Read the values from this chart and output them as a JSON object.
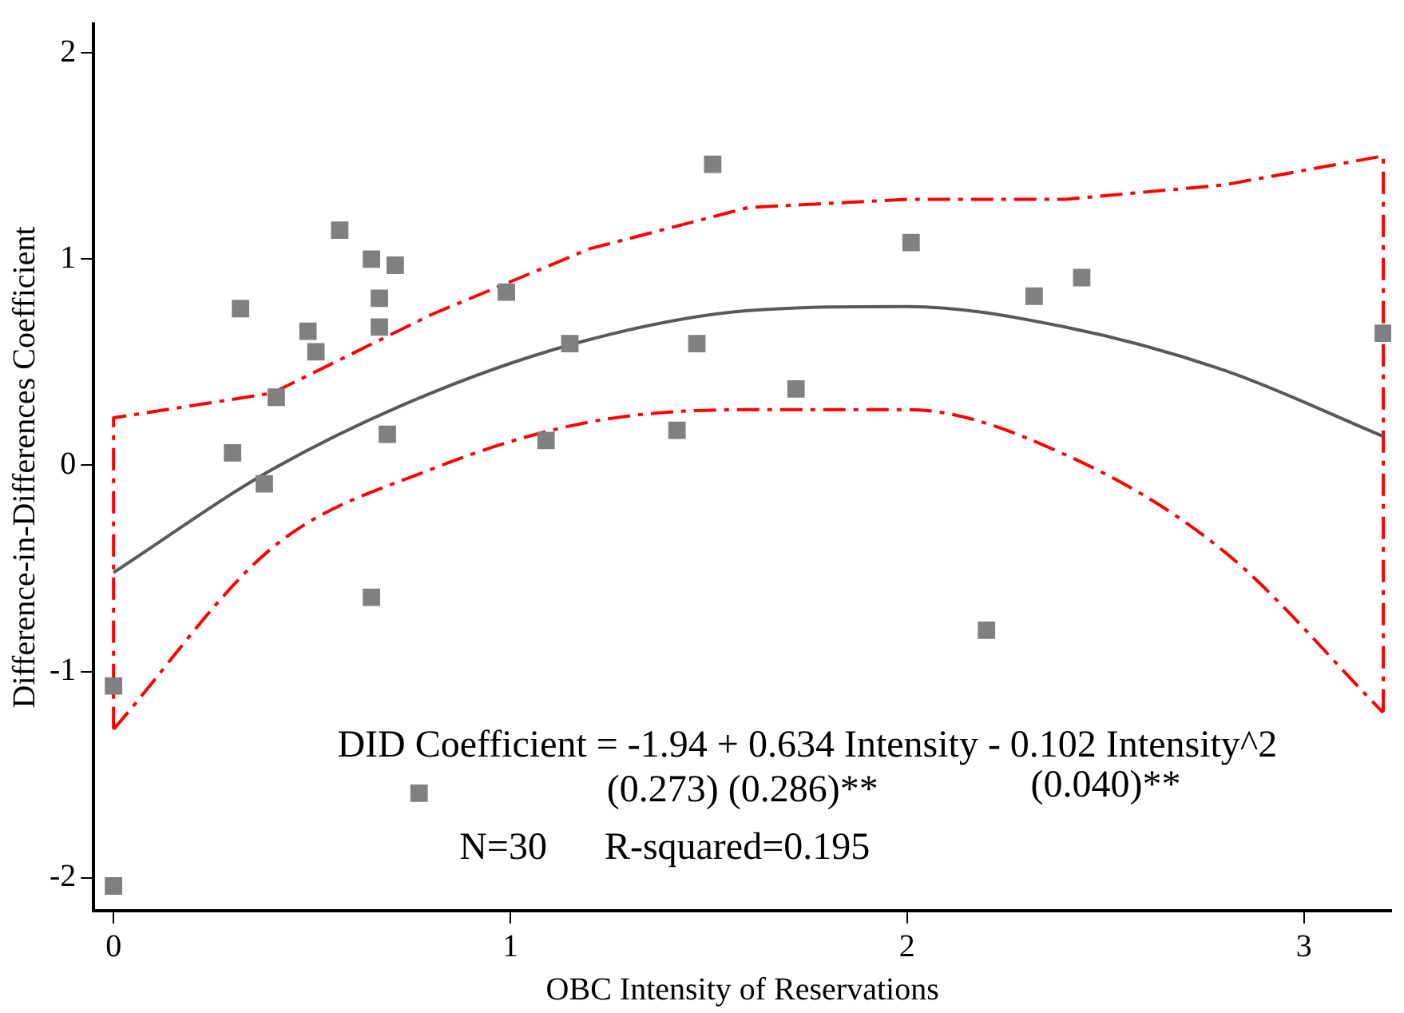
{
  "chart_data": {
    "type": "scatter",
    "xlabel": "OBC Intensity of Reservations",
    "ylabel": "Difference-in-Differences Coefficient",
    "xlim": [
      -0.05,
      3.22
    ],
    "xticks": [
      0,
      1,
      2,
      3
    ],
    "ylim": [
      -2.16,
      2.14
    ],
    "yticks": [
      -2,
      -1,
      0,
      1,
      2
    ],
    "grid": false,
    "legend": false,
    "marker": "square",
    "series": [
      {
        "color": "#808080",
        "x": [
          0,
          0,
          0.3,
          0.32,
          0.38,
          0.41,
          0.49,
          0.51,
          0.57,
          0.65,
          0.67,
          0.67,
          0.71,
          0.69,
          0.65,
          0.77,
          0.99,
          1.09,
          1.15,
          1.42,
          1.47,
          1.51,
          1.72,
          2.01,
          2.2,
          2.32,
          2.44,
          3.2
        ],
        "values": [
          -1.07,
          -2.04,
          0.06,
          0.76,
          -0.09,
          0.33,
          0.65,
          0.55,
          1.14,
          1.0,
          0.81,
          0.67,
          0.97,
          0.15,
          -0.64,
          -1.59,
          0.84,
          0.12,
          0.59,
          0.17,
          0.59,
          1.46,
          0.37,
          1.08,
          -0.8,
          0.82,
          0.91,
          0.64
        ]
      },
      {
        "type": "line",
        "marker": "none",
        "color": "#595959",
        "x": [
          0,
          0.4,
          0.8,
          1.2,
          1.6,
          2.0,
          2.4,
          2.8,
          3.2
        ],
        "values": [
          -0.52,
          -0.02,
          0.35,
          0.61,
          0.75,
          0.77,
          0.67,
          0.46,
          0.14
        ]
      },
      {
        "type": "line",
        "marker": "none",
        "line_style": "dashed",
        "color": "#ff0000",
        "x": [
          0,
          0,
          0.4,
          0.8,
          1.2,
          1.6,
          2.0,
          2.4,
          2.8,
          3.2,
          3.2
        ],
        "values": [
          -1.28,
          0.23,
          0.35,
          0.73,
          1.05,
          1.25,
          1.29,
          1.29,
          1.36,
          1.5,
          -1.2
        ]
      },
      {
        "type": "line",
        "marker": "none",
        "line_style": "dashed",
        "color": "#ff0000",
        "x": [
          0,
          0.4,
          0.8,
          1.2,
          1.6,
          2.0,
          2.4,
          2.8,
          3.2
        ],
        "values": [
          -1.28,
          -0.4,
          -0.02,
          0.21,
          0.27,
          0.27,
          0.05,
          -0.42,
          -1.2
        ]
      }
    ],
    "annotations": [
      "DID Coefficient = -1.94 + 0.634 Intensity - 0.102 Intensity^2",
      "(0.273) (0.286)**",
      "(0.040)**",
      "N=30      R-squared=0.195"
    ]
  }
}
